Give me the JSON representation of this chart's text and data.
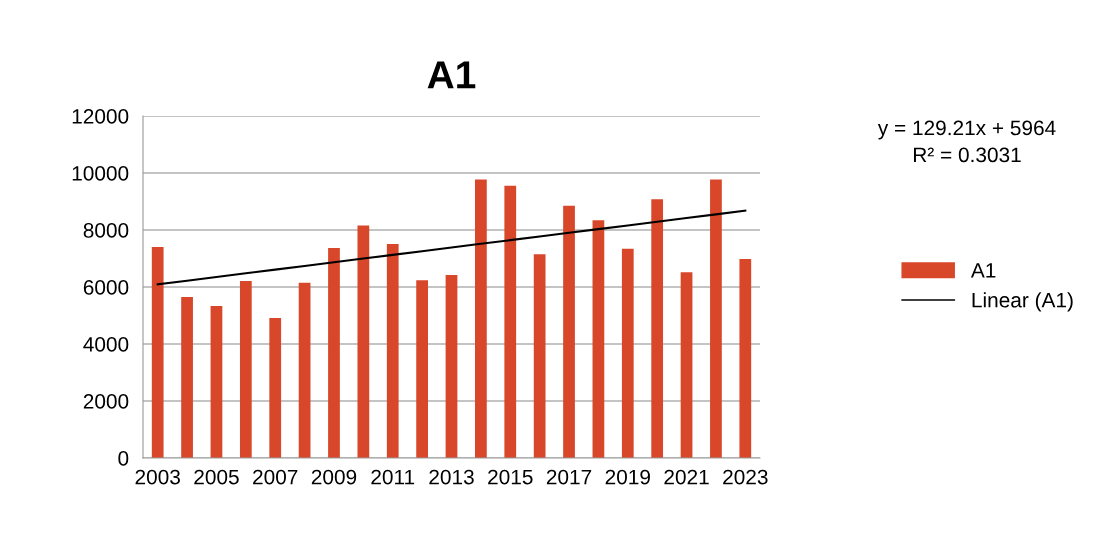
{
  "chart_data": {
    "type": "bar",
    "title": "A1",
    "categories": [
      "2003",
      null,
      "2005",
      null,
      "2007",
      null,
      "2009",
      null,
      "2011",
      null,
      "2013",
      null,
      "2015",
      null,
      "2017",
      null,
      "2019",
      null,
      "2021",
      null,
      "2023"
    ],
    "series": [
      {
        "name": "A1",
        "color": "#d9472b",
        "values": [
          7400,
          5650,
          5330,
          6210,
          4910,
          6150,
          7370,
          8160,
          7510,
          6240,
          6420,
          9770,
          9550,
          7150,
          8850,
          8340,
          7340,
          9080,
          6520,
          9770,
          6980
        ]
      },
      {
        "name": "Linear (A1)",
        "type": "line",
        "color": "#000000",
        "values": [
          6093,
          6222,
          6352,
          6481,
          6610,
          6739,
          6868,
          6998,
          7127,
          7256,
          7385,
          7515,
          7644,
          7773,
          7902,
          8031,
          8161,
          8290,
          8419,
          8548,
          8677
        ]
      }
    ],
    "ylim": [
      0,
      12000
    ],
    "yticks": [
      0,
      2000,
      4000,
      6000,
      8000,
      10000,
      12000
    ],
    "grid": "y",
    "legend": "right",
    "annotations": [
      "y = 129.21x + 5964\nR² = 0.3031"
    ]
  }
}
